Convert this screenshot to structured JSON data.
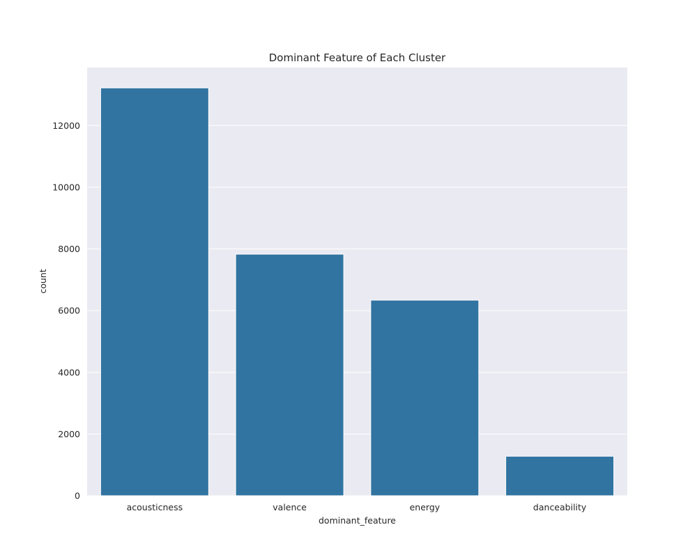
{
  "chart_data": {
    "type": "bar",
    "title": "Dominant Feature of Each Cluster",
    "xlabel": "dominant_feature",
    "ylabel": "count",
    "categories": [
      "acousticness",
      "valence",
      "energy",
      "danceability"
    ],
    "values": [
      13220,
      7830,
      6340,
      1280
    ],
    "ylim": [
      0,
      13880
    ],
    "yticks": [
      0,
      2000,
      4000,
      6000,
      8000,
      10000,
      12000
    ],
    "grid": true,
    "legend": "none",
    "colors": {
      "bar": "#3274a1",
      "plot_background": "#eaeaf2",
      "grid": "#ffffff"
    }
  }
}
